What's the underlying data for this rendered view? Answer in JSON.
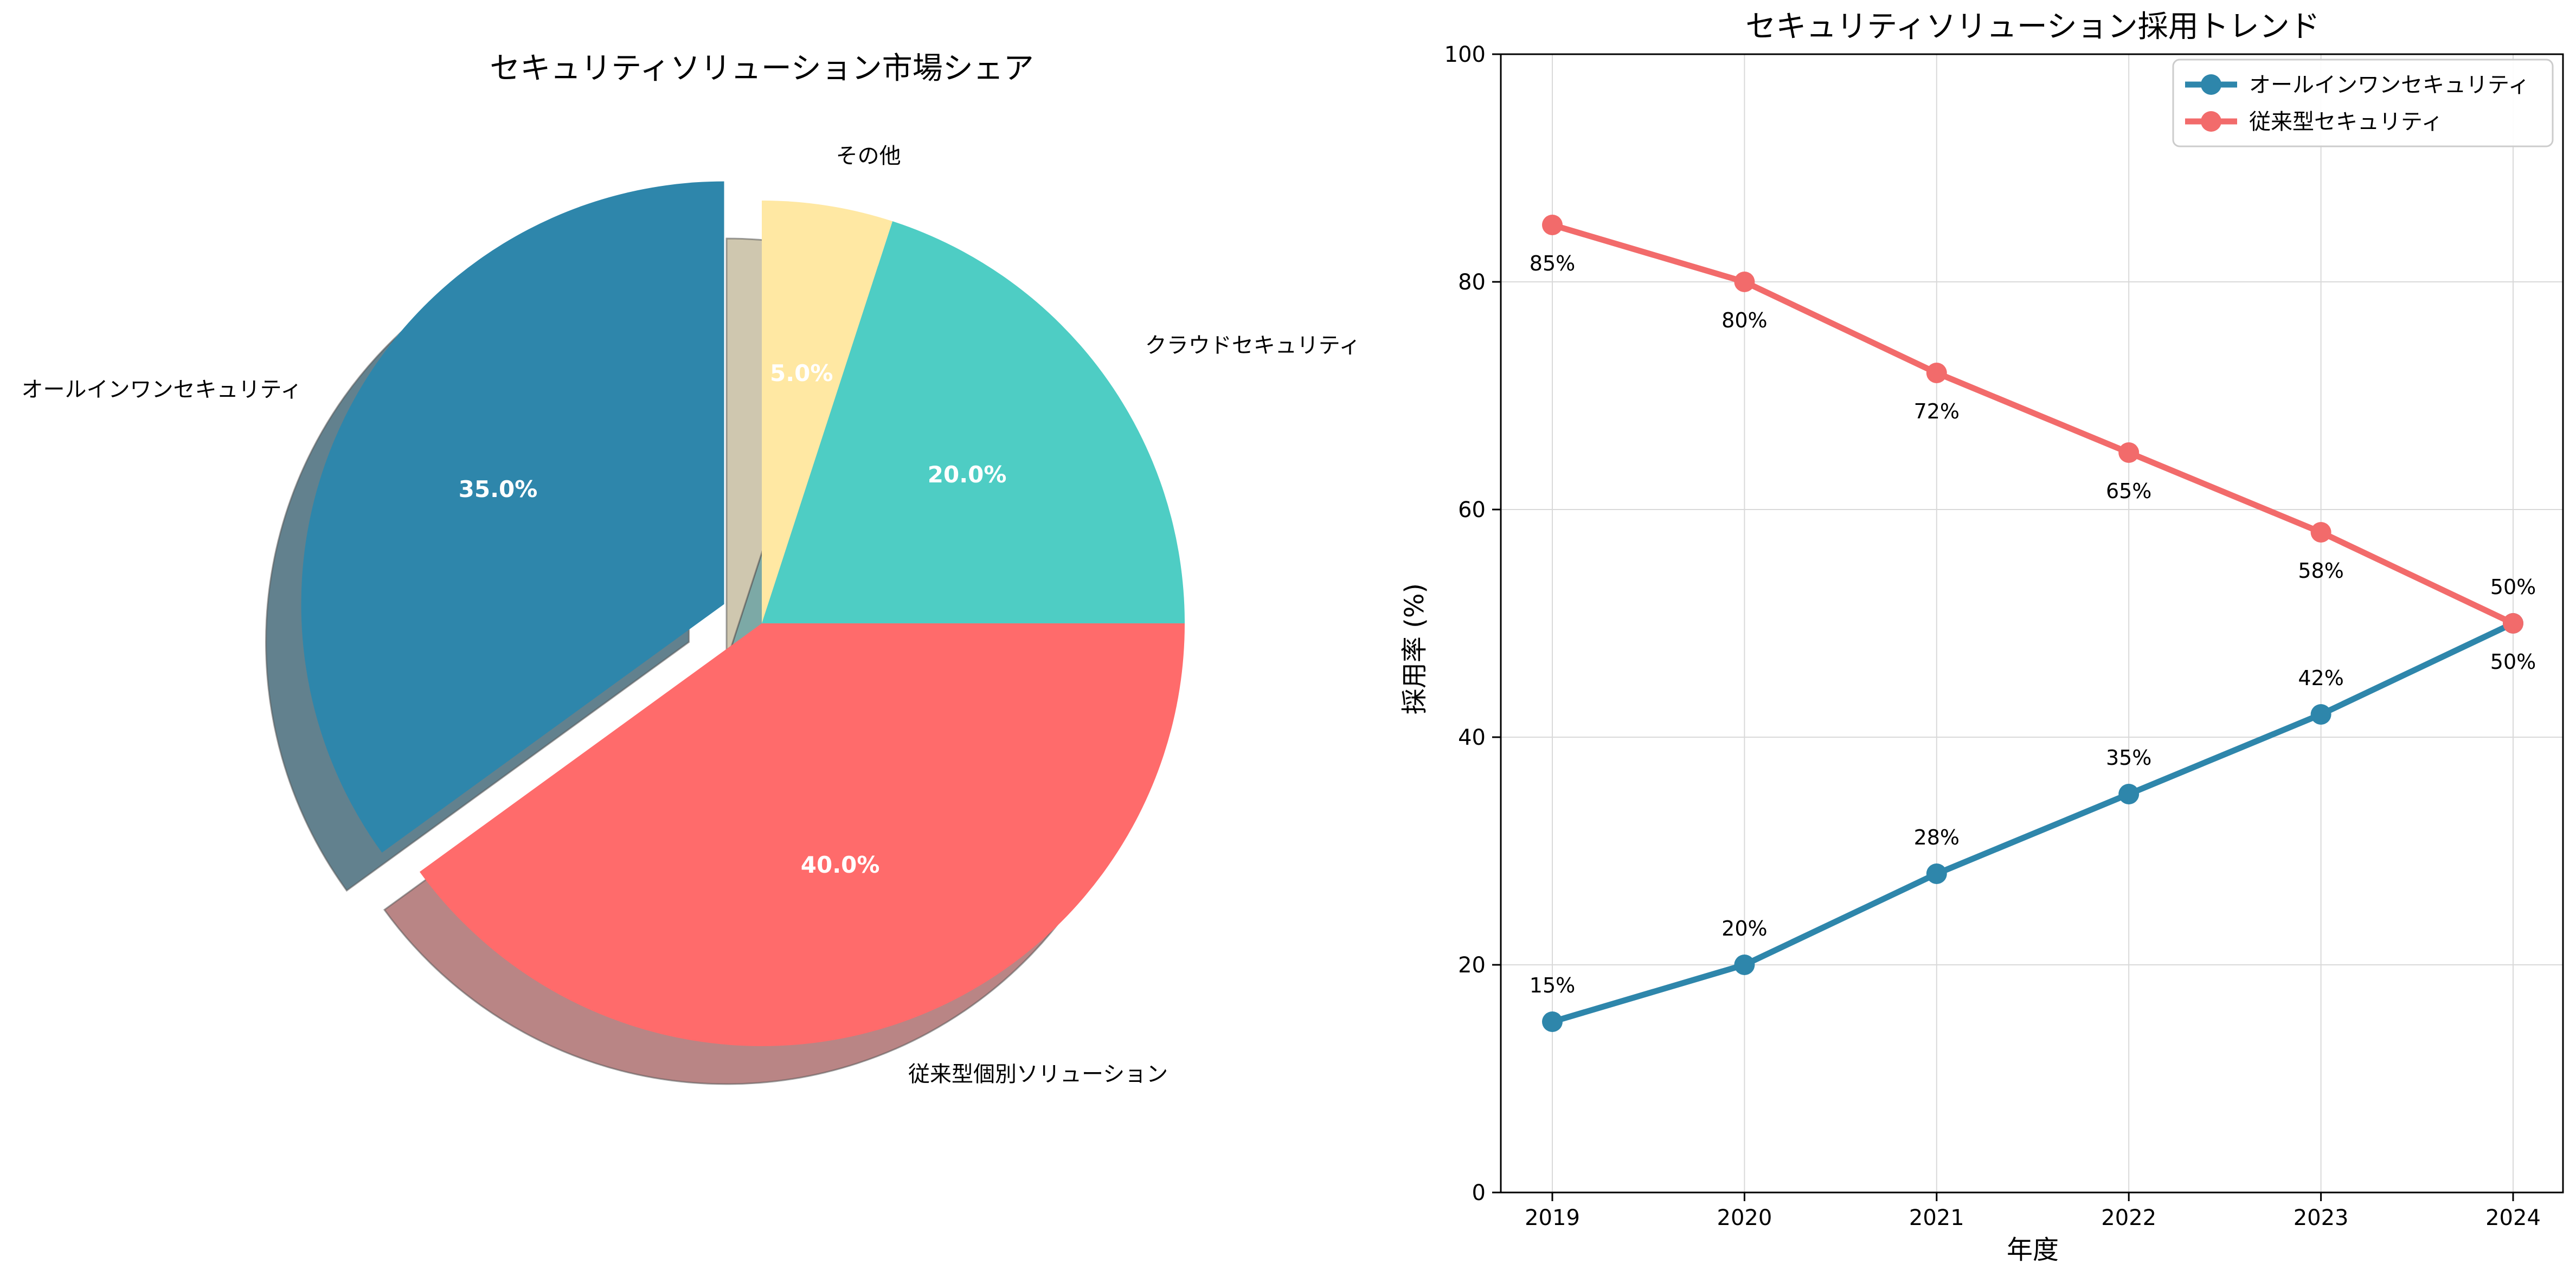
{
  "chart_data": [
    {
      "type": "pie",
      "title": "セキュリティソリューション市場シェア",
      "start_angle_deg": 90,
      "counterclockwise": true,
      "shadow": true,
      "slices": [
        {
          "label": "オールインワンセキュリティ",
          "value": 35.0,
          "pct_label": "35.0%",
          "color": "#2E86AB",
          "exploded": true
        },
        {
          "label": "従来型個別ソリューション",
          "value": 40.0,
          "pct_label": "40.0%",
          "color": "#FF6B6B",
          "exploded": false
        },
        {
          "label": "クラウドセキュリティ",
          "value": 20.0,
          "pct_label": "20.0%",
          "color": "#4ECDC4",
          "exploded": false
        },
        {
          "label": "その他",
          "value": 5.0,
          "pct_label": "5.0%",
          "color": "#FFE8A3",
          "exploded": false
        }
      ]
    },
    {
      "type": "line",
      "title": "セキュリティソリューション採用トレンド",
      "xlabel": "年度",
      "ylabel": "採用率 (%)",
      "x": [
        "2019",
        "2020",
        "2021",
        "2022",
        "2023",
        "2024"
      ],
      "ylim": [
        0,
        100
      ],
      "yticks": [
        "0",
        "20",
        "40",
        "60",
        "80",
        "100"
      ],
      "grid": true,
      "legend_position": "top-right",
      "series": [
        {
          "name": "オールインワンセキュリティ",
          "color": "#2E86AB",
          "values": [
            15,
            20,
            28,
            35,
            42,
            50
          ],
          "labels": [
            "15%",
            "20%",
            "28%",
            "35%",
            "42%",
            "50%"
          ],
          "label_position": "above"
        },
        {
          "name": "従来型セキュリティ",
          "color": "#F26B6B",
          "values": [
            85,
            80,
            72,
            65,
            58,
            50
          ],
          "labels": [
            "85%",
            "80%",
            "72%",
            "65%",
            "58%",
            "50%"
          ],
          "label_position": "below"
        }
      ]
    }
  ]
}
